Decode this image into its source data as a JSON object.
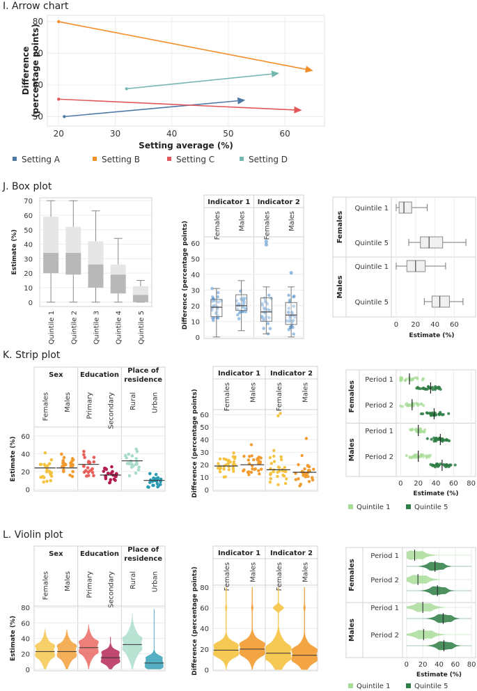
{
  "sections": {
    "arrow": "I. Arrow chart",
    "box": "J. Box plot",
    "strip": "K. Strip plot",
    "violin": "L. Violin plot"
  },
  "colors": {
    "settingA": "#4e79a7",
    "settingB": "#f28e2b",
    "settingC": "#e15759",
    "settingD": "#76b7b2",
    "females": "#f5c342",
    "males": "#f29b30",
    "primary": "#e8605a",
    "secondary": "#b01c4e",
    "rural": "#a8dcc8",
    "urban": "#2a9bb3",
    "blue": "#4e8fcf",
    "light_green": "#a9dc9a",
    "dark_green": "#2e7d44",
    "box_light": "#e6e6e6",
    "box_dark": "#b8b8b8"
  },
  "chart_data": [
    {
      "id": "arrow",
      "type": "line",
      "title": "I. Arrow chart",
      "xlabel": "Setting average (%)",
      "ylabel": "Difference (percentage points)",
      "ylabel_lines": [
        "Difference",
        "(percentage points)"
      ],
      "xlim": [
        18,
        67
      ],
      "ylim": [
        47,
        82
      ],
      "xticks": [
        "20",
        "30",
        "40",
        "50",
        "60"
      ],
      "yticks": [
        "50",
        "60",
        "70",
        "80"
      ],
      "series": [
        {
          "name": "Setting A",
          "start": [
            21,
            50
          ],
          "end": [
            53,
            55.2
          ]
        },
        {
          "name": "Setting B",
          "start": [
            20,
            80
          ],
          "end": [
            65,
            64.5
          ]
        },
        {
          "name": "Setting C",
          "start": [
            20,
            55.5
          ],
          "end": [
            63,
            52
          ]
        },
        {
          "name": "Setting D",
          "start": [
            32,
            58.8
          ],
          "end": [
            59,
            63.7
          ]
        }
      ]
    },
    {
      "id": "box1",
      "type": "box",
      "ylabel": "Estimate (%)",
      "ylim": [
        -3,
        72
      ],
      "yticks": [
        "0",
        "10",
        "20",
        "30",
        "40",
        "50",
        "60",
        "70"
      ],
      "categories": [
        "Quintile 1",
        "Quintile 2",
        "Quintile 3",
        "Quintile 4",
        "Quintile 5"
      ],
      "boxes": [
        {
          "min": 0,
          "q1": 20,
          "median": 34,
          "q3": 59,
          "max": 70
        },
        {
          "min": 0,
          "q1": 19,
          "median": 34,
          "q3": 52,
          "max": 70
        },
        {
          "min": 0,
          "q1": 10,
          "median": 26,
          "q3": 42,
          "max": 63
        },
        {
          "min": 0,
          "q1": 6,
          "median": 19,
          "q3": 26,
          "max": 44
        },
        {
          "min": 0,
          "q1": 0,
          "median": 5,
          "q3": 11,
          "max": 15
        }
      ]
    },
    {
      "id": "box2",
      "type": "box",
      "ylabel": "Difference (percentage points)",
      "ylim": [
        -1,
        64
      ],
      "yticks": [
        "0",
        "10",
        "20",
        "30",
        "40",
        "50",
        "60"
      ],
      "groups": [
        "Indicator 1",
        "Indicator 2"
      ],
      "subgroups": [
        "Females",
        "Males"
      ],
      "boxes": [
        {
          "group": "Indicator 1",
          "sub": "Females",
          "min": 0,
          "q1": 13,
          "median": 19,
          "q3": 24,
          "max": 31
        },
        {
          "group": "Indicator 1",
          "sub": "Males",
          "min": 4,
          "q1": 17,
          "median": 20,
          "q3": 27,
          "max": 36
        },
        {
          "group": "Indicator 2",
          "sub": "Females",
          "min": 2,
          "q1": 10,
          "median": 16,
          "q3": 25,
          "max": 32,
          "outliers": [
            59,
            61
          ]
        },
        {
          "group": "Indicator 2",
          "sub": "Males",
          "min": 0,
          "q1": 8,
          "median": 14,
          "q3": 22,
          "max": 32,
          "outliers": [
            41
          ]
        }
      ]
    },
    {
      "id": "box3",
      "type": "box",
      "xlabel": "Estimate (%)",
      "xlim": [
        -5,
        82
      ],
      "xticks": [
        "0",
        "20",
        "40",
        "60"
      ],
      "groups": [
        "Females",
        "Males"
      ],
      "categories": [
        "Quintile 1",
        "Quintile 5"
      ],
      "boxes": [
        {
          "group": "Females",
          "cat": "Quintile 1",
          "min": 0,
          "q1": 3,
          "median": 8,
          "q3": 16,
          "max": 32
        },
        {
          "group": "Females",
          "cat": "Quintile 5",
          "min": 13,
          "q1": 25,
          "median": 34,
          "q3": 48,
          "max": 72
        },
        {
          "group": "Males",
          "cat": "Quintile 1",
          "min": 0,
          "q1": 11,
          "median": 20,
          "q3": 30,
          "max": 51
        },
        {
          "group": "Males",
          "cat": "Quintile 5",
          "min": 29,
          "q1": 37,
          "median": 45,
          "q3": 55,
          "max": 69
        }
      ]
    },
    {
      "id": "strip1",
      "type": "scatter",
      "ylabel": "Estimate (%)",
      "ylim": [
        -2,
        70
      ],
      "yticks": [
        "0",
        "20",
        "40",
        "60"
      ],
      "groups": [
        "Sex",
        "Education",
        "Place of residence"
      ],
      "group_lines": [
        [
          "Sex"
        ],
        [
          "Education"
        ],
        [
          "Place of",
          "residence"
        ]
      ],
      "columns": [
        "Females",
        "Males",
        "Primary",
        "Secondary",
        "Rural",
        "Urban"
      ],
      "medians": [
        24,
        24,
        28,
        16,
        32,
        10
      ]
    },
    {
      "id": "strip2",
      "type": "scatter",
      "ylabel": "Difference (percentage points)",
      "ylim": [
        -1,
        64
      ],
      "yticks": [
        "0",
        "10",
        "20",
        "30",
        "40",
        "50",
        "60"
      ],
      "groups": [
        "Indicator 1",
        "Indicator 2"
      ],
      "columns": [
        "Females",
        "Males",
        "Females",
        "Males"
      ],
      "medians": [
        19,
        20,
        16,
        14
      ]
    },
    {
      "id": "strip3",
      "type": "scatter",
      "xlabel": "Estimate (%)",
      "xlim": [
        -5,
        85
      ],
      "xticks": [
        "0",
        "20",
        "40",
        "60",
        "80"
      ],
      "groups": [
        "Females",
        "Males"
      ],
      "rows": [
        "Period 1",
        "Period 2"
      ],
      "legend": [
        "Quintile 1",
        "Quintile 5"
      ],
      "medians": [
        [
          10,
          34
        ],
        [
          13,
          38
        ],
        [
          20,
          45
        ],
        [
          20,
          47
        ]
      ]
    },
    {
      "id": "violin1",
      "type": "violin",
      "ylabel": "Estimate (%)",
      "ylim": [
        -2,
        82
      ],
      "yticks": [
        "0",
        "20",
        "40",
        "60",
        "80"
      ],
      "groups": [
        "Sex",
        "Education",
        "Place of residence"
      ],
      "group_lines": [
        [
          "Sex"
        ],
        [
          "Education"
        ],
        [
          "Place of",
          "residence"
        ]
      ],
      "columns": [
        "Females",
        "Males",
        "Primary",
        "Secondary",
        "Rural",
        "Urban"
      ],
      "medians": [
        23,
        23,
        28,
        15,
        32,
        8
      ]
    },
    {
      "id": "violin2",
      "type": "violin",
      "ylabel": "Difference (percentage points)",
      "ylim": [
        -1,
        82
      ],
      "yticks": [
        "0",
        "20",
        "40",
        "60",
        "80"
      ],
      "groups": [
        "Indicator 1",
        "Indicator 2"
      ],
      "columns": [
        "Females",
        "Males",
        "Females",
        "Males"
      ],
      "medians": [
        19,
        20,
        16,
        14
      ]
    },
    {
      "id": "violin3",
      "type": "violin",
      "xlabel": "Estimate (%)",
      "xlim": [
        -5,
        85
      ],
      "xticks": [
        "0",
        "20",
        "40",
        "60",
        "80"
      ],
      "groups": [
        "Females",
        "Males"
      ],
      "rows": [
        "Period 1",
        "Period 2"
      ],
      "legend": [
        "Quintile 1",
        "Quintile 5"
      ],
      "medians": [
        [
          10,
          35
        ],
        [
          14,
          38
        ],
        [
          20,
          45
        ],
        [
          21,
          46
        ]
      ]
    }
  ]
}
